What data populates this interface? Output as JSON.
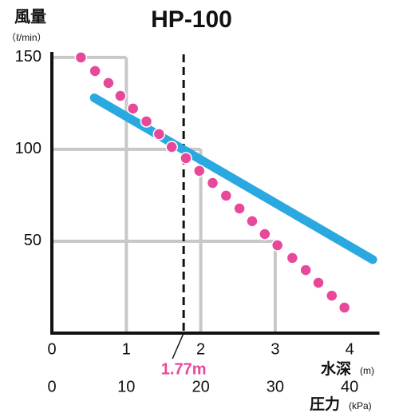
{
  "chart_data": {
    "type": "line",
    "title": "HP-100",
    "title_color": "#e8489a",
    "ylabel": "風量",
    "yunit": "（ℓ/min）",
    "xlabel": "水深",
    "xunit": "(m)",
    "x2label": "圧力",
    "x2unit": "(kPa)",
    "xlim": [
      0,
      4.4
    ],
    "xticks": [
      0,
      1,
      2,
      3,
      4
    ],
    "x2lim": [
      0,
      44
    ],
    "x2ticks": [
      0,
      10,
      20,
      30,
      40
    ],
    "ylim": [
      0,
      153
    ],
    "yticks": [
      50,
      100,
      150
    ],
    "grid": true,
    "series": [
      {
        "color": "#29a9e0",
        "style": "solid",
        "x": [
          0.57,
          4.31
        ],
        "values": [
          128,
          40
        ]
      },
      {
        "color": "#e8489a",
        "style": "dots",
        "x": [
          0.39,
          0.58,
          0.76,
          0.92,
          1.09,
          1.27,
          1.44,
          1.61,
          1.8,
          1.98,
          2.16,
          2.34,
          2.52,
          2.69,
          2.86,
          3.03,
          3.23,
          3.41,
          3.58,
          3.76,
          3.93
        ],
        "values": [
          150,
          142.6,
          136.1,
          129.1,
          122.2,
          115.2,
          108.3,
          101.3,
          95.2,
          88.3,
          81.7,
          74.8,
          67.8,
          60.9,
          53.9,
          47.8,
          40.9,
          34.3,
          27.4,
          20.4,
          13.9
        ]
      }
    ],
    "vline": {
      "x": 1.77,
      "label": "1.77m",
      "color": "#e8489a"
    }
  }
}
